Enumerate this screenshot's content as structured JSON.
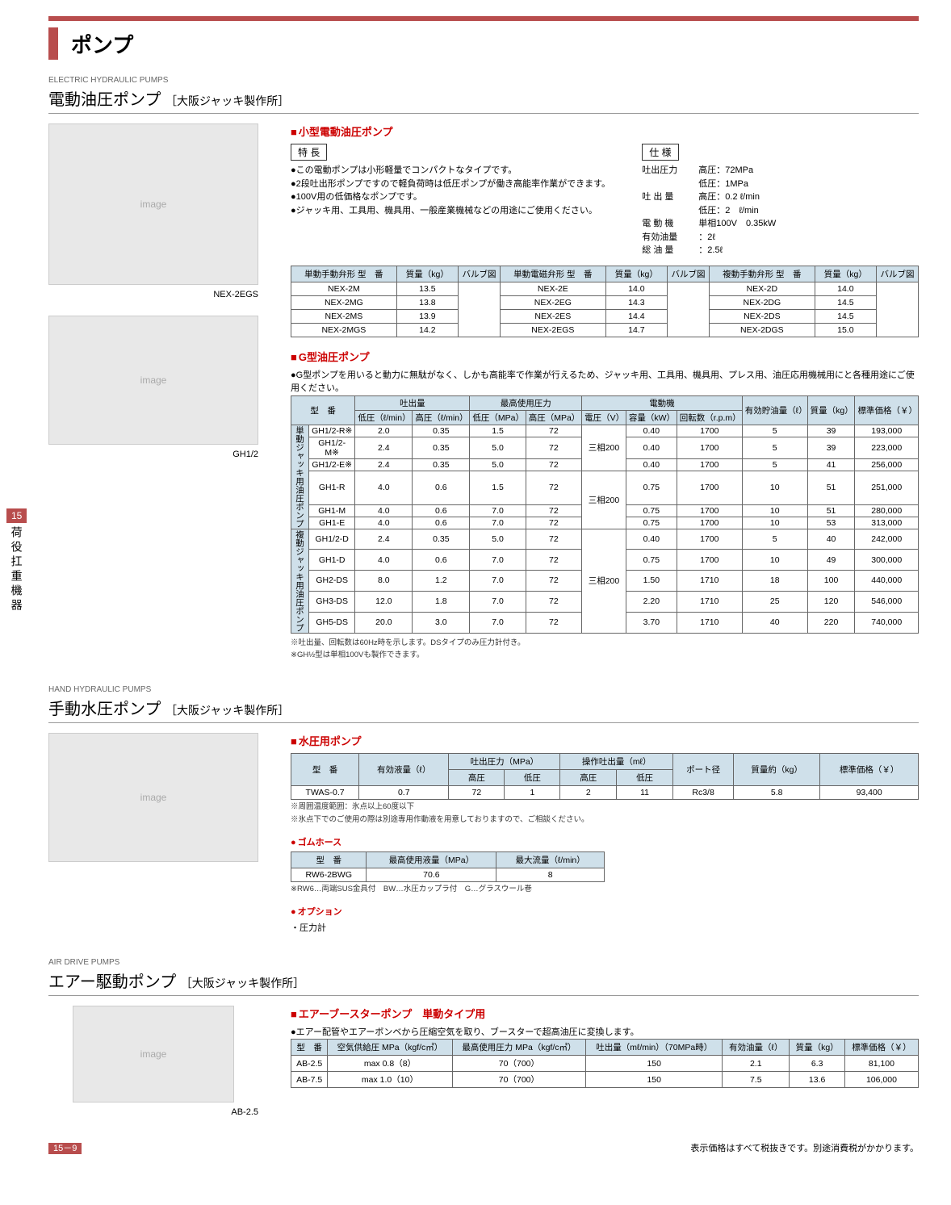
{
  "page": {
    "title": "ポンプ",
    "sideTab": {
      "num": "15",
      "text": "荷役扛重機器"
    },
    "pageNum": "15－9",
    "footerNote": "表示価格はすべて税抜きです。別途消費税がかかります。"
  },
  "sec1": {
    "labelEn": "ELECTRIC HYDRAULIC PUMPS",
    "title": "電動油圧ポンプ",
    "sub": "［大阪ジャッキ製作所］",
    "imgCap1": "NEX-2EGS",
    "imgCap2": "GH1/2",
    "subA": {
      "heading": "小型電動油圧ポンプ",
      "featureLabel": "特 長",
      "features": [
        "この電動ポンプは小形軽量でコンパクトなタイプです。",
        "2段吐出形ポンプですので軽負荷時は低圧ポンプが働き高能率作業ができます。",
        "100V用の低価格なポンプです。",
        "ジャッキ用、工具用、機具用、一般産業機械などの用途にご使用ください。"
      ],
      "specLabel": "仕 様",
      "specs": [
        {
          "l": "吐出圧力",
          "v": "高圧：72MPa"
        },
        {
          "l": "",
          "v": "低圧：1MPa"
        },
        {
          "l": "吐 出 量",
          "v": "高圧：0.2 ℓ/min"
        },
        {
          "l": "",
          "v": "低圧：2　ℓ/min"
        },
        {
          "l": "電 動 機",
          "v": "単相100V　0.35kW"
        },
        {
          "l": "有効油量",
          "v": "：2ℓ"
        },
        {
          "l": "総 油 量",
          "v": "：2.5ℓ"
        }
      ],
      "nex": {
        "h": {
          "c1": "単動手動弁形 型　番",
          "c2": "質量（kg）",
          "c3": "バルブ図",
          "c4": "単動電磁弁形 型　番",
          "c5": "質量（kg）",
          "c6": "バルブ図",
          "c7": "複動手動弁形 型　番",
          "c8": "質量（kg）",
          "c9": "バルブ図"
        },
        "rows": [
          [
            "NEX-2M",
            "13.5",
            "NEX-2E",
            "14.0",
            "NEX-2D",
            "14.0"
          ],
          [
            "NEX-2MG",
            "13.8",
            "NEX-2EG",
            "14.3",
            "NEX-2DG",
            "14.5"
          ],
          [
            "NEX-2MS",
            "13.9",
            "NEX-2ES",
            "14.4",
            "NEX-2DS",
            "14.5"
          ],
          [
            "NEX-2MGS",
            "14.2",
            "NEX-2EGS",
            "14.7",
            "NEX-2DGS",
            "15.0"
          ]
        ]
      }
    },
    "subB": {
      "heading": "G型油圧ポンプ",
      "lead": "G型ポンプを用いると動力に無駄がなく、しかも高能率で作業が行えるため、ジャッキ用、工具用、機具用、プレス用、油圧応用機械用にと各種用途にご使用ください。",
      "th": {
        "model": "型　番",
        "disc": "吐出量",
        "discL": "低圧（ℓ/min）",
        "discH": "高圧（ℓ/min）",
        "press": "最高使用圧力",
        "pressL": "低圧（MPa）",
        "pressH": "高圧（MPa）",
        "motor": "電動機",
        "volt": "電圧（V）",
        "cap": "容量（kW）",
        "rpm": "回転数（r.p.m）",
        "oil": "有効貯油量（ℓ）",
        "mass": "質量（kg）",
        "price": "標準価格（￥）",
        "cat1": "単動ジャッキ用油圧ポンプ",
        "cat2": "複動ジャッキ用油圧ポンプ"
      },
      "rows1": [
        [
          "GH1/2-R※",
          "2.0",
          "0.35",
          "1.5",
          "72",
          "三相200",
          "0.40",
          "1700",
          "5",
          "39",
          "193,000"
        ],
        [
          "GH1/2-M※",
          "2.4",
          "0.35",
          "5.0",
          "72",
          "",
          "0.40",
          "1700",
          "5",
          "39",
          "223,000"
        ],
        [
          "GH1/2-E※",
          "2.4",
          "0.35",
          "5.0",
          "72",
          "",
          "0.40",
          "1700",
          "5",
          "41",
          "256,000"
        ],
        [
          "GH1-R",
          "4.0",
          "0.6",
          "1.5",
          "72",
          "三相200",
          "0.75",
          "1700",
          "10",
          "51",
          "251,000"
        ],
        [
          "GH1-M",
          "4.0",
          "0.6",
          "7.0",
          "72",
          "",
          "0.75",
          "1700",
          "10",
          "51",
          "280,000"
        ],
        [
          "GH1-E",
          "4.0",
          "0.6",
          "7.0",
          "72",
          "",
          "0.75",
          "1700",
          "10",
          "53",
          "313,000"
        ]
      ],
      "rows2": [
        [
          "GH1/2-D",
          "2.4",
          "0.35",
          "5.0",
          "72",
          "三相200",
          "0.40",
          "1700",
          "5",
          "40",
          "242,000"
        ],
        [
          "GH1-D",
          "4.0",
          "0.6",
          "7.0",
          "72",
          "",
          "0.75",
          "1700",
          "10",
          "49",
          "300,000"
        ],
        [
          "GH2-DS",
          "8.0",
          "1.2",
          "7.0",
          "72",
          "",
          "1.50",
          "1710",
          "18",
          "100",
          "440,000"
        ],
        [
          "GH3-DS",
          "12.0",
          "1.8",
          "7.0",
          "72",
          "",
          "2.20",
          "1710",
          "25",
          "120",
          "546,000"
        ],
        [
          "GH5-DS",
          "20.0",
          "3.0",
          "7.0",
          "72",
          "",
          "3.70",
          "1710",
          "40",
          "220",
          "740,000"
        ]
      ],
      "note1": "※吐出量、回転数は60Hz時を示します。DSタイプのみ圧力計付き。",
      "note2": "※GH½型は単相100Vも製作できます。"
    }
  },
  "sec2": {
    "labelEn": "HAND HYDRAULIC PUMPS",
    "title": "手動水圧ポンプ",
    "sub": "［大阪ジャッキ製作所］",
    "subA": {
      "heading": "水圧用ポンプ",
      "th": {
        "model": "型　番",
        "vol": "有効液量（ℓ）",
        "press": "吐出圧力（MPa）",
        "pressH": "高圧",
        "pressL": "低圧",
        "disc": "操作吐出量（mℓ）",
        "discH": "高圧",
        "discL": "低圧",
        "port": "ポート径",
        "mass": "質量約（kg）",
        "price": "標準価格（￥）"
      },
      "row": [
        "TWAS-0.7",
        "0.7",
        "72",
        "1",
        "2",
        "11",
        "Rc3/8",
        "5.8",
        "93,400"
      ],
      "note1": "※周囲温度範囲：氷点以上60度以下",
      "note2": "※氷点下でのご使用の際は別途専用作動液を用意しておりますので、ご相談ください。"
    },
    "subB": {
      "heading": "ゴムホース",
      "th": {
        "model": "型　番",
        "press": "最高使用液量（MPa）",
        "flow": "最大流量（ℓ/min）"
      },
      "row": [
        "RW6-2BWG",
        "70.6",
        "8"
      ],
      "note": "※RW6…両端SUS金具付　BW…水圧カップラ付　G…グラスウール巻"
    },
    "subC": {
      "heading": "オプション",
      "item": "・圧力計"
    }
  },
  "sec3": {
    "labelEn": "AIR DRIVE PUMPS",
    "title": "エアー駆動ポンプ",
    "sub": "［大阪ジャッキ製作所］",
    "imgCap": "AB-2.5",
    "subA": {
      "heading": "エアーブースターポンプ　単動タイプ用",
      "lead": "エアー配管やエアーボンベから圧縮空気を取り、ブースターで超高油圧に変換します。",
      "th": {
        "model": "型　番",
        "air": "空気供給圧 MPa（kgf/c㎡）",
        "press": "最高使用圧力 MPa（kgf/c㎡）",
        "disc": "吐出量（mℓ/min）（70MPa時）",
        "oil": "有効油量（ℓ）",
        "mass": "質量（kg）",
        "price": "標準価格（￥）"
      },
      "rows": [
        [
          "AB-2.5",
          "max 0.8（8）",
          "70（700）",
          "150",
          "2.1",
          "6.3",
          "81,100"
        ],
        [
          "AB-7.5",
          "max 1.0（10）",
          "70（700）",
          "150",
          "7.5",
          "13.6",
          "106,000"
        ]
      ]
    }
  }
}
